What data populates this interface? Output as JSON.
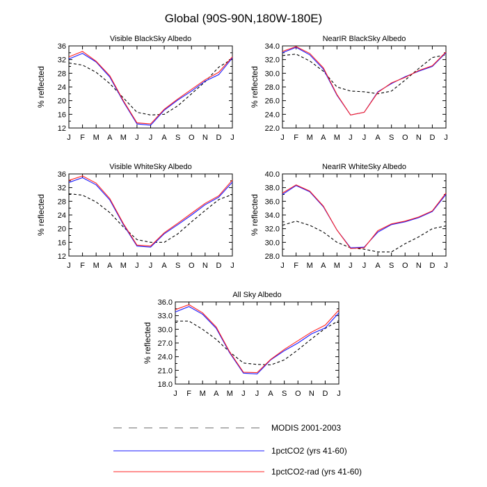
{
  "figure": {
    "title": "Global (90S-90N,180W-180E)",
    "ylabel": "% reflected",
    "months": [
      "J",
      "F",
      "M",
      "A",
      "M",
      "J",
      "J",
      "A",
      "S",
      "O",
      "N",
      "D",
      "J"
    ]
  },
  "legend": [
    {
      "label": "MODIS 2001-2003",
      "color": "#000000",
      "dash": true
    },
    {
      "label": "1pctCO2 (yrs 41-60)",
      "color": "#1a1aff",
      "dash": false
    },
    {
      "label": "1pctCO2-rad (yrs 41-60)",
      "color": "#ff2020",
      "dash": false
    }
  ],
  "chart_data": [
    {
      "type": "line",
      "title": "Visible BlackSky Albedo",
      "ylabel": "% reflected",
      "ylim": [
        12,
        36
      ],
      "yticks": [
        "12",
        "16",
        "20",
        "24",
        "28",
        "32",
        "36"
      ],
      "series": [
        {
          "name": "MODIS 2001-2003",
          "values": [
            31.0,
            30.4,
            28.3,
            25.0,
            20.8,
            16.6,
            15.8,
            16.0,
            18.5,
            22.0,
            25.5,
            29.8,
            32.2
          ]
        },
        {
          "name": "1pctCO2 (yrs 41-60)",
          "values": [
            32.2,
            33.8,
            31.3,
            26.9,
            19.7,
            13.2,
            12.8,
            17.2,
            20.2,
            22.8,
            25.7,
            27.6,
            32.5
          ]
        },
        {
          "name": "1pctCO2-rad (yrs 41-60)",
          "values": [
            32.8,
            34.4,
            31.5,
            27.3,
            20.0,
            13.5,
            13.2,
            17.5,
            20.5,
            23.3,
            26.1,
            28.3,
            32.8
          ]
        }
      ]
    },
    {
      "type": "line",
      "title": "NearIR BlackSky Albedo",
      "ylabel": "% reflected",
      "ylim": [
        22,
        34
      ],
      "yticks": [
        "22.0",
        "24.0",
        "26.0",
        "28.0",
        "30.0",
        "32.0",
        "34.0"
      ],
      "series": [
        {
          "name": "MODIS 2001-2003",
          "values": [
            32.6,
            32.8,
            31.8,
            30.3,
            28.0,
            27.4,
            27.3,
            27.0,
            27.4,
            29.0,
            30.7,
            32.3,
            32.7
          ]
        },
        {
          "name": "1pctCO2 (yrs 41-60)",
          "values": [
            33.0,
            33.8,
            32.7,
            30.6,
            26.8,
            23.9,
            24.3,
            27.3,
            28.5,
            29.5,
            30.3,
            31.0,
            33.0
          ]
        },
        {
          "name": "1pctCO2-rad (yrs 41-60)",
          "values": [
            33.2,
            33.9,
            32.9,
            30.8,
            26.9,
            23.9,
            24.3,
            27.2,
            28.6,
            29.4,
            30.4,
            31.1,
            33.1
          ]
        }
      ]
    },
    {
      "type": "line",
      "title": "Visible WhiteSky Albedo",
      "ylabel": "% reflected",
      "ylim": [
        12,
        36
      ],
      "yticks": [
        "12",
        "16",
        "20",
        "24",
        "28",
        "32",
        "36"
      ],
      "series": [
        {
          "name": "MODIS 2001-2003",
          "values": [
            30.2,
            29.8,
            27.8,
            24.7,
            20.5,
            16.8,
            16.0,
            16.0,
            18.5,
            22.0,
            25.3,
            28.5,
            30.0
          ]
        },
        {
          "name": "1pctCO2 (yrs 41-60)",
          "values": [
            33.5,
            34.9,
            32.8,
            28.4,
            21.2,
            14.9,
            14.6,
            18.5,
            21.2,
            24.0,
            27.0,
            29.2,
            33.6
          ]
        },
        {
          "name": "1pctCO2-rad (yrs 41-60)",
          "values": [
            34.1,
            35.4,
            33.3,
            28.8,
            21.5,
            15.2,
            14.9,
            18.8,
            21.6,
            24.5,
            27.4,
            29.6,
            34.2
          ]
        }
      ]
    },
    {
      "type": "line",
      "title": "NearIR WhiteSky Albedo",
      "ylabel": "% reflected",
      "ylim": [
        28,
        40
      ],
      "yticks": [
        "28.0",
        "30.0",
        "32.0",
        "34.0",
        "36.0",
        "38.0",
        "40.0"
      ],
      "series": [
        {
          "name": "MODIS 2001-2003",
          "values": [
            32.5,
            33.1,
            32.5,
            31.5,
            30.0,
            29.2,
            29.0,
            28.6,
            28.6,
            29.8,
            30.8,
            32.0,
            32.4
          ]
        },
        {
          "name": "1pctCO2 (yrs 41-60)",
          "values": [
            37.0,
            38.3,
            37.4,
            35.2,
            31.8,
            29.2,
            29.3,
            31.5,
            32.6,
            33.0,
            33.6,
            34.5,
            37.0
          ]
        },
        {
          "name": "1pctCO2-rad (yrs 41-60)",
          "values": [
            37.2,
            38.4,
            37.5,
            35.3,
            31.8,
            29.1,
            29.2,
            31.7,
            32.7,
            33.1,
            33.7,
            34.6,
            37.2
          ]
        }
      ]
    },
    {
      "type": "line",
      "title": "All Sky Albedo",
      "ylabel": "% reflected",
      "ylim": [
        18,
        36
      ],
      "yticks": [
        "18.0",
        "21.0",
        "24.0",
        "27.0",
        "30.0",
        "33.0",
        "36.0"
      ],
      "series": [
        {
          "name": "MODIS 2001-2003",
          "values": [
            31.8,
            31.8,
            30.0,
            27.8,
            25.0,
            22.6,
            22.3,
            22.2,
            23.3,
            25.5,
            27.9,
            30.2,
            31.9
          ]
        },
        {
          "name": "1pctCO2 (yrs 41-60)",
          "values": [
            33.8,
            35.0,
            33.3,
            30.2,
            24.8,
            20.4,
            20.2,
            23.3,
            25.3,
            27.0,
            29.0,
            30.3,
            33.6
          ]
        },
        {
          "name": "1pctCO2-rad (yrs 41-60)",
          "values": [
            34.3,
            35.4,
            33.6,
            30.5,
            25.0,
            20.6,
            20.5,
            23.4,
            25.6,
            27.5,
            29.4,
            30.9,
            34.2
          ]
        }
      ]
    }
  ]
}
